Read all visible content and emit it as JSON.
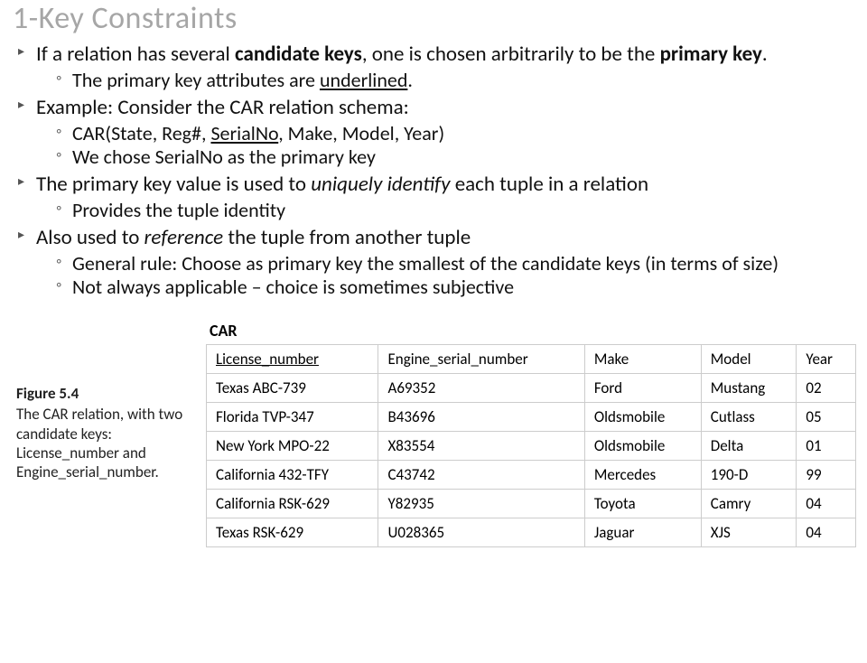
{
  "title": "1-Key Constraints",
  "bullets": [
    {
      "plain_before": "If a relation has several ",
      "bold1": "candidate keys",
      "middle": ", one is chosen arbitrarily to be the ",
      "bold2": "primary key",
      "after": ".",
      "sub": [
        {
          "pre": "The primary key attributes are ",
          "under": "underlined",
          "post": "."
        }
      ]
    },
    {
      "text": "Example: Consider the CAR relation schema:",
      "sub": [
        {
          "car_schema_pre": "CAR(State, Reg#, ",
          "car_schema_under": "SerialNo",
          "car_schema_post": ", Make, Model, Year)"
        },
        {
          "plain": "We chose SerialNo as the primary key"
        }
      ]
    },
    {
      "pre": "The primary key value is used to ",
      "ital": "uniquely identify",
      "post": " each tuple in a relation",
      "sub": [
        {
          "plain": "Provides the tuple identity"
        }
      ]
    },
    {
      "pre": "Also used to ",
      "ital": "reference",
      "post": " the tuple from another tuple",
      "sub": [
        {
          "plain": "General rule: Choose as primary key the smallest of the candidate keys (in terms of size)"
        },
        {
          "plain": "Not always applicable – choice is sometimes subjective"
        }
      ]
    }
  ],
  "figure": {
    "label": "CAR",
    "columns": [
      {
        "name": "License_number",
        "underlined": true
      },
      {
        "name": "Engine_serial_number",
        "underlined": false
      },
      {
        "name": "Make",
        "underlined": false
      },
      {
        "name": "Model",
        "underlined": false
      },
      {
        "name": "Year",
        "underlined": false
      }
    ],
    "rows": [
      [
        "Texas ABC-739",
        "A69352",
        "Ford",
        "Mustang",
        "02"
      ],
      [
        "Florida TVP-347",
        "B43696",
        "Oldsmobile",
        "Cutlass",
        "05"
      ],
      [
        "New York MPO-22",
        "X83554",
        "Oldsmobile",
        "Delta",
        "01"
      ],
      [
        "California 432-TFY",
        "C43742",
        "Mercedes",
        "190-D",
        "99"
      ],
      [
        "California RSK-629",
        "Y82935",
        "Toyota",
        "Camry",
        "04"
      ],
      [
        "Texas RSK-629",
        "U028365",
        "Jaguar",
        "XJS",
        "04"
      ]
    ],
    "caption_no": "Figure 5.4",
    "caption_text": "The CAR relation, with two candidate keys: License_number and Engine_serial_number."
  },
  "style": {
    "title_color": "#a6a6a6",
    "text_color": "#111111",
    "border_color": "#cccccc",
    "title_fontsize": 34,
    "bullet_fontsize": 23,
    "sub_fontsize": 22,
    "table_fontsize": 17
  }
}
